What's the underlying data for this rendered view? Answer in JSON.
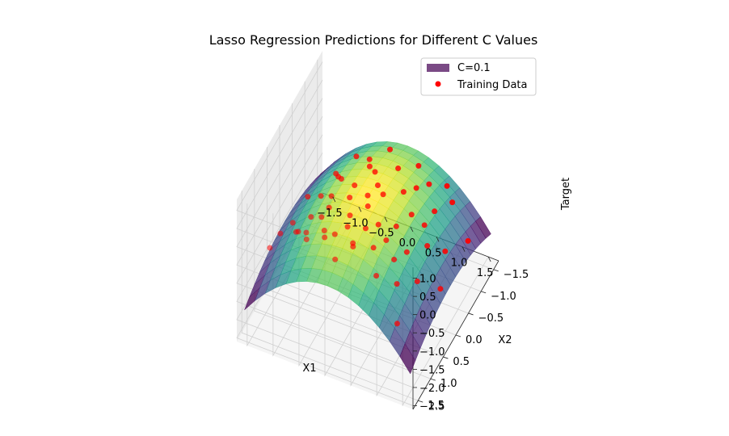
{
  "chart_data": {
    "type": "surface3d+scatter3d",
    "title": "Lasso Regression Predictions for Different C Values",
    "xlabel": "X1",
    "ylabel": "X2",
    "zlabel": "Target",
    "x_ticks": [
      "−1.5",
      "−1.0",
      "−0.5",
      "0.0",
      "0.5",
      "1.0",
      "1.5"
    ],
    "y_ticks": [
      "−1.5",
      "−1.0",
      "−0.5",
      "0.0",
      "0.5",
      "1.0",
      "1.5"
    ],
    "z_ticks": [
      "−2.5",
      "−2.0",
      "−1.5",
      "−1.0",
      "−0.5",
      "0.0",
      "0.5",
      "1.0"
    ],
    "xlim": [
      -1.7,
      1.7
    ],
    "ylim": [
      -1.7,
      1.7
    ],
    "zlim": [
      -2.6,
      1.3
    ],
    "legend": {
      "placement": "upper-right",
      "entries": [
        {
          "label": "C=0.1",
          "kind": "patch",
          "color": "#7a4a85"
        },
        {
          "label": "Training Data",
          "kind": "point",
          "color": "#ff0000"
        }
      ]
    },
    "surface": {
      "name": "C=0.1",
      "colormap": "viridis",
      "x_range": [
        -1.6,
        1.6
      ],
      "y_range": [
        -1.6,
        1.6
      ],
      "model": "z = 0.25 - 0.6*x1^2 - 0.2*x2^2"
    },
    "scatter": {
      "name": "Training Data",
      "color": "#ff0000",
      "points": [
        [
          -1.2,
          1.0,
          -0.2
        ],
        [
          -0.8,
          1.2,
          0.3
        ],
        [
          -0.5,
          1.4,
          0.5
        ],
        [
          -0.2,
          1.3,
          0.6
        ],
        [
          0.1,
          1.5,
          0.4
        ],
        [
          0.3,
          1.2,
          0.5
        ],
        [
          -0.4,
          0.9,
          0.2
        ],
        [
          0.0,
          0.8,
          0.4
        ],
        [
          0.2,
          1.0,
          0.3
        ],
        [
          -0.6,
          0.6,
          0.1
        ],
        [
          0.5,
          0.8,
          0.1
        ],
        [
          0.7,
          1.1,
          -0.2
        ],
        [
          -0.9,
          0.4,
          -0.3
        ],
        [
          -0.1,
          0.5,
          0.3
        ],
        [
          0.4,
          0.4,
          0.2
        ],
        [
          0.8,
          0.6,
          -0.3
        ],
        [
          1.0,
          0.9,
          -0.5
        ],
        [
          -1.3,
          0.3,
          -0.8
        ],
        [
          -0.7,
          0.0,
          -0.1
        ],
        [
          -0.3,
          0.1,
          0.2
        ],
        [
          0.1,
          0.2,
          0.3
        ],
        [
          0.6,
          0.1,
          -0.1
        ],
        [
          0.9,
          0.3,
          -0.4
        ],
        [
          1.2,
          0.5,
          -0.8
        ],
        [
          -1.0,
          -0.2,
          -0.5
        ],
        [
          -0.4,
          -0.3,
          0.0
        ],
        [
          0.2,
          -0.2,
          0.2
        ],
        [
          0.7,
          -0.3,
          -0.2
        ],
        [
          1.1,
          -0.1,
          -0.6
        ],
        [
          -1.4,
          -0.5,
          -1.1
        ],
        [
          -0.8,
          -0.6,
          -0.4
        ],
        [
          -0.2,
          -0.7,
          0.0
        ],
        [
          0.4,
          -0.6,
          -0.1
        ],
        [
          0.9,
          -0.8,
          -0.6
        ],
        [
          1.3,
          -0.4,
          -1.0
        ],
        [
          -1.1,
          -1.0,
          -0.9
        ],
        [
          -0.5,
          -1.1,
          -0.3
        ],
        [
          0.1,
          -1.0,
          -0.1
        ],
        [
          0.6,
          -1.2,
          -0.5
        ],
        [
          1.0,
          -1.3,
          -0.9
        ],
        [
          -0.9,
          -1.4,
          -0.8
        ],
        [
          -0.3,
          -1.5,
          -0.4
        ],
        [
          0.3,
          -1.4,
          -0.4
        ],
        [
          0.8,
          -1.5,
          -0.8
        ],
        [
          1.4,
          -1.1,
          -1.5
        ],
        [
          -0.6,
          0.3,
          0.0
        ],
        [
          0.0,
          -0.4,
          0.1
        ],
        [
          0.5,
          -0.9,
          -0.3
        ],
        [
          -0.1,
          1.1,
          0.5
        ],
        [
          0.3,
          0.7,
          0.4
        ],
        [
          -1.5,
          0.8,
          -1.0
        ],
        [
          1.5,
          0.2,
          -1.2
        ],
        [
          -1.2,
          -1.3,
          -1.4
        ],
        [
          1.2,
          1.3,
          -1.0
        ],
        [
          0.0,
          0.0,
          0.3
        ],
        [
          -0.7,
          1.0,
          0.1
        ],
        [
          0.6,
          0.5,
          0.0
        ],
        [
          -0.4,
          -0.9,
          -0.2
        ],
        [
          0.9,
          -0.4,
          -0.5
        ],
        [
          -1.0,
          0.7,
          -0.4
        ]
      ]
    }
  }
}
